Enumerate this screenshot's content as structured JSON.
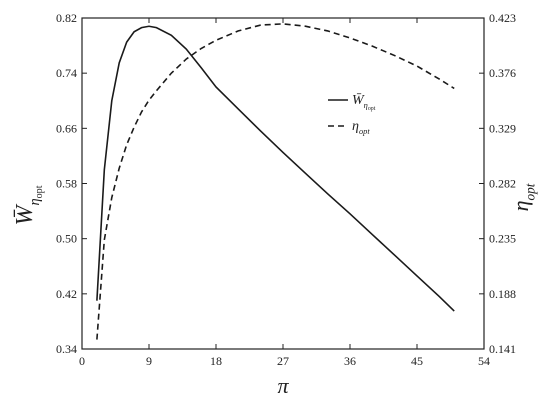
{
  "chart_data": {
    "type": "line",
    "xlabel": "π",
    "ylabel": [
      "W̄",
      "η",
      "opt"
    ],
    "y2label": [
      "η",
      "opt"
    ],
    "x": [
      2,
      3,
      4,
      5,
      6,
      7,
      8,
      9,
      10,
      12,
      14,
      16,
      18,
      21,
      24,
      27,
      30,
      33,
      36,
      39,
      42,
      45,
      48,
      50
    ],
    "series": [
      {
        "name": [
          "W̄",
          "η",
          "opt"
        ],
        "color": "#1a1a1a",
        "dash": "solid",
        "axis": "y",
        "values": [
          0.41,
          0.6,
          0.7,
          0.755,
          0.785,
          0.8,
          0.806,
          0.808,
          0.806,
          0.795,
          0.775,
          0.748,
          0.72,
          0.688,
          0.656,
          0.625,
          0.595,
          0.565,
          0.536,
          0.506,
          0.476,
          0.446,
          0.416,
          0.395
        ]
      },
      {
        "name": [
          "η",
          "opt"
        ],
        "color": "#1a1a1a",
        "dash": "dashed",
        "axis": "y2",
        "values": [
          0.149,
          0.234,
          0.27,
          0.295,
          0.315,
          0.33,
          0.343,
          0.353,
          0.361,
          0.376,
          0.388,
          0.397,
          0.404,
          0.412,
          0.417,
          0.418,
          0.416,
          0.412,
          0.406,
          0.399,
          0.391,
          0.382,
          0.371,
          0.363
        ]
      }
    ],
    "xlim": [
      0,
      54
    ],
    "xticks": [
      0,
      9,
      18,
      27,
      36,
      45,
      54
    ],
    "ylim": [
      0.34,
      0.82
    ],
    "yticks": [
      0.34,
      0.42,
      {
        "value": 0.5,
        "label": "0.50"
      },
      0.58,
      0.66,
      0.74,
      0.82
    ],
    "y2lim": [
      0.141,
      0.423
    ],
    "y2ticks": [
      0.141,
      0.188,
      0.235,
      0.282,
      0.329,
      0.376,
      0.423
    ],
    "legend": "upper-right"
  }
}
